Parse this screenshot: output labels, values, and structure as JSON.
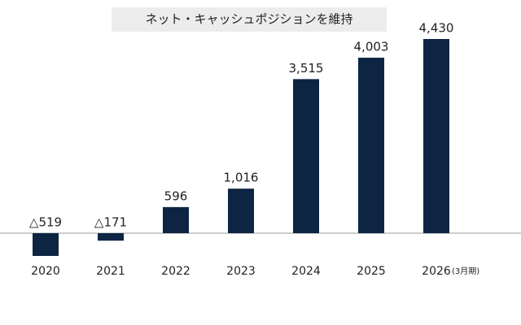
{
  "chart_data": {
    "type": "bar",
    "title": "ネット・キャッシュポジションを維持",
    "categories": [
      "2020",
      "2021",
      "2022",
      "2023",
      "2024",
      "2025",
      "2026"
    ],
    "category_note": "(3月期)",
    "values": [
      -519,
      -171,
      596,
      1016,
      3515,
      4003,
      4430
    ],
    "value_labels": [
      "△519",
      "△171",
      "596",
      "1,016",
      "3,515",
      "4,003",
      "4,430"
    ],
    "color": "#0d2543"
  }
}
